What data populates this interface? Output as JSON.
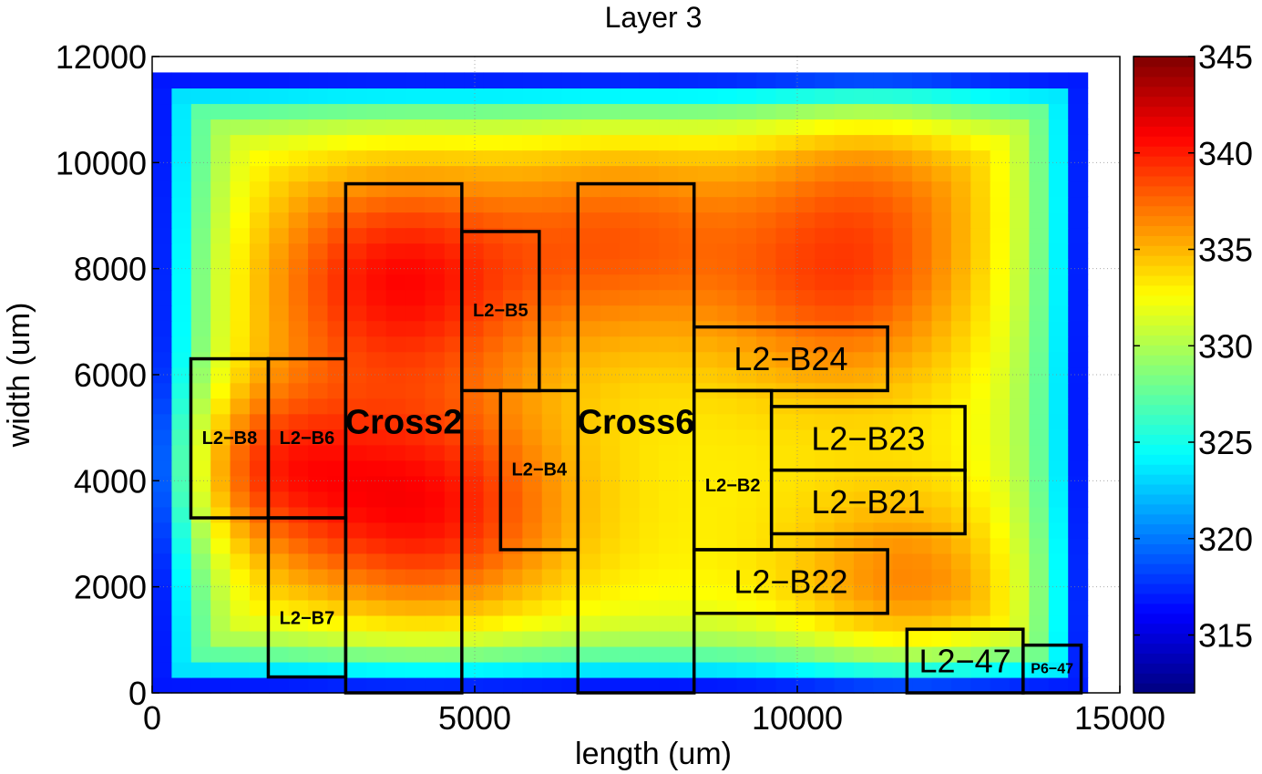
{
  "chart_data": {
    "type": "heatmap",
    "title": "Layer 3",
    "xlabel": "length (um)",
    "ylabel": "width (um)",
    "xlim": [
      0,
      15000
    ],
    "ylim": [
      0,
      12000
    ],
    "x_ticks": [
      "0",
      "5000",
      "10000",
      "15000"
    ],
    "y_ticks": [
      "0",
      "2000",
      "4000",
      "6000",
      "8000",
      "10000",
      "12000"
    ],
    "x_tick_values": [
      0,
      5000,
      10000,
      15000
    ],
    "y_tick_values": [
      0,
      2000,
      4000,
      6000,
      8000,
      10000,
      12000
    ],
    "colorbar": {
      "colormap": "jet",
      "min": 312,
      "max": 345,
      "ticks": [
        "315",
        "320",
        "325",
        "330",
        "335",
        "340",
        "345"
      ],
      "tick_values": [
        315,
        320,
        325,
        330,
        335,
        340,
        345
      ]
    },
    "heatmap_extent": {
      "x": [
        0,
        14500
      ],
      "y": [
        0,
        11700
      ]
    },
    "heatmap_grid": {
      "nx": 48,
      "ny": 40
    },
    "hotspots": [
      {
        "x": 3800,
        "y": 7800,
        "sigma": 1500,
        "amp": 7.5
      },
      {
        "x": 4200,
        "y": 3500,
        "sigma": 1500,
        "amp": 7.5
      },
      {
        "x": 1700,
        "y": 4300,
        "sigma": 1100,
        "amp": 5.5
      },
      {
        "x": 7300,
        "y": 8600,
        "sigma": 1400,
        "amp": 4.5
      },
      {
        "x": 10700,
        "y": 7700,
        "sigma": 1400,
        "amp": 5
      },
      {
        "x": 11700,
        "y": 1900,
        "sigma": 1300,
        "amp": 4
      },
      {
        "x": 11200,
        "y": 10000,
        "sigma": 1400,
        "amp": 3
      }
    ],
    "background_level": 333,
    "blocks": [
      {
        "label": "L2−B8",
        "x0": 600,
        "x1": 1800,
        "y0": 3300,
        "y1": 6300,
        "style": "small"
      },
      {
        "label": "L2−B6",
        "x0": 1800,
        "x1": 3000,
        "y0": 3300,
        "y1": 6300,
        "style": "small"
      },
      {
        "label": "L2−B7",
        "x0": 1800,
        "x1": 3000,
        "y0": 300,
        "y1": 3300,
        "style": "small",
        "label_y": 1400
      },
      {
        "label": "Cross2",
        "x0": 3000,
        "x1": 4800,
        "y0": 0,
        "y1": 9600,
        "style": "bold",
        "label_y": 5100
      },
      {
        "label": "L2−B5",
        "x0": 4800,
        "x1": 6000,
        "y0": 5700,
        "y1": 8700,
        "style": "small"
      },
      {
        "label": "L2−B4",
        "x0": 5400,
        "x1": 6600,
        "y0": 2700,
        "y1": 5700,
        "style": "small"
      },
      {
        "label": "Cross6",
        "x0": 6600,
        "x1": 8400,
        "y0": 0,
        "y1": 9600,
        "style": "bold",
        "label_y": 5100
      },
      {
        "label": "L2−B24",
        "x0": 8400,
        "x1": 11400,
        "y0": 5700,
        "y1": 6900,
        "style": "large"
      },
      {
        "label": "L2−B2",
        "x0": 8400,
        "x1": 9600,
        "y0": 2700,
        "y1": 5700,
        "style": "small",
        "label_y": 3900
      },
      {
        "label": "L2−B23",
        "x0": 9600,
        "x1": 12600,
        "y0": 4200,
        "y1": 5400,
        "style": "large"
      },
      {
        "label": "L2−B21",
        "x0": 9600,
        "x1": 12600,
        "y0": 3000,
        "y1": 4200,
        "style": "large"
      },
      {
        "label": "L2−B22",
        "x0": 8400,
        "x1": 11400,
        "y0": 1500,
        "y1": 2700,
        "style": "large"
      },
      {
        "label": "L2−47",
        "x0": 11700,
        "x1": 13500,
        "y0": 0,
        "y1": 1200,
        "style": "large"
      },
      {
        "label": "P6−47",
        "x0": 13500,
        "x1": 14400,
        "y0": 0,
        "y1": 900,
        "style": "tiny"
      }
    ]
  }
}
